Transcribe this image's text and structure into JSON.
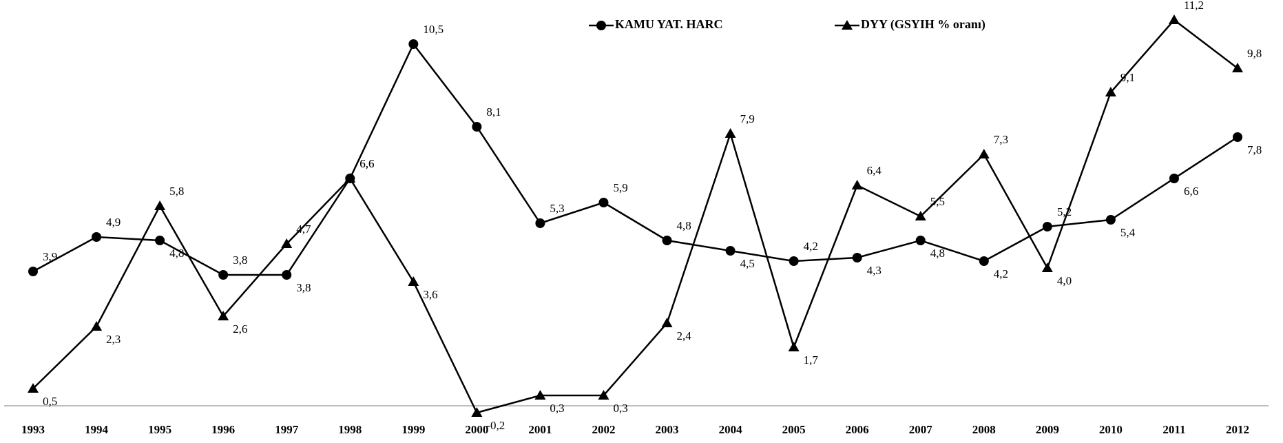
{
  "chart_data": {
    "type": "line",
    "categories": [
      "1993",
      "1994",
      "1995",
      "1996",
      "1997",
      "1998",
      "1999",
      "2000",
      "2001",
      "2002",
      "2003",
      "2004",
      "2005",
      "2006",
      "2007",
      "2008",
      "2009",
      "2010",
      "2011",
      "2012"
    ],
    "series": [
      {
        "name": "KAMU YAT. HARC",
        "color": "#000000",
        "marker": "circle",
        "values": [
          3.9,
          4.9,
          4.8,
          3.8,
          3.8,
          6.6,
          10.5,
          8.1,
          5.3,
          5.9,
          4.8,
          4.5,
          4.2,
          4.3,
          4.8,
          4.2,
          5.2,
          5.4,
          6.6,
          7.8
        ],
        "value_labels": [
          "3,9",
          "4,9",
          "4,8",
          "3,8",
          "3,8",
          "6,6",
          "10,5",
          "8,1",
          "5,3",
          "5,9",
          "4,8",
          "4,5",
          "4,2",
          "4,3",
          "4,8",
          "4,2",
          "5,2",
          "5,4",
          "6,6",
          "7,8"
        ]
      },
      {
        "name": "DYY (GSYIH % oranı)",
        "color": "#000000",
        "marker": "triangle",
        "values": [
          0.5,
          2.3,
          5.8,
          2.6,
          4.7,
          6.6,
          3.6,
          -0.2,
          0.3,
          0.3,
          2.4,
          7.9,
          1.7,
          6.4,
          5.5,
          7.3,
          4.0,
          9.1,
          11.2,
          9.8
        ],
        "value_labels": [
          "0,5",
          "2,3",
          "5,8",
          "2,6",
          "4,7",
          "6,6",
          "3,6",
          "-0,2",
          "0,3",
          "0,3",
          "2,4",
          "7,9",
          "1,7",
          "6,4",
          "5,5",
          "7,3",
          "4,0",
          "9,1",
          "11,2",
          "9,8"
        ]
      }
    ],
    "ylim": [
      -0.3,
      11.5
    ]
  }
}
